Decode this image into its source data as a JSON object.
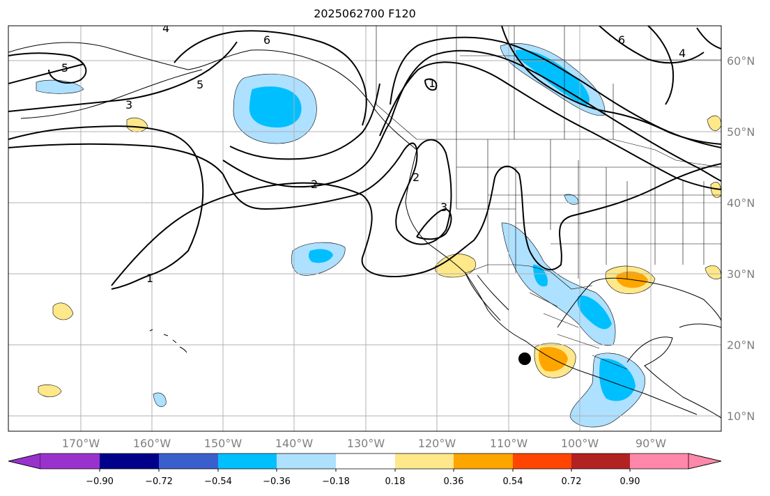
{
  "title": "2025062700 F120",
  "map": {
    "lat_labels": [
      "60°N",
      "50°N",
      "40°N",
      "30°N",
      "20°N",
      "10°N"
    ],
    "lon_labels": [
      "170°W",
      "160°W",
      "150°W",
      "140°W",
      "130°W",
      "120°W",
      "110°W",
      "100°W",
      "90°W"
    ],
    "contour_labels": [
      "4",
      "6",
      "5",
      "5",
      "3",
      "2",
      "1",
      "2",
      "3",
      "1",
      "6",
      "4"
    ],
    "negative_fill_colors": [
      "#aee0ff",
      "#00bfff"
    ],
    "positive_fill_colors": [
      "#ffe88a",
      "#ffa500"
    ],
    "contour_color": "#000000",
    "marker": "storm-center-dot"
  },
  "colorbar": {
    "ticks": [
      "−0.90",
      "−0.72",
      "−0.54",
      "−0.36",
      "−0.18",
      "0.18",
      "0.36",
      "0.54",
      "0.72",
      "0.90"
    ],
    "colors": [
      "#9932cc",
      "#00008b",
      "#3a5fcd",
      "#00bfff",
      "#aee0ff",
      "#ffffff",
      "#ffe88a",
      "#ffa500",
      "#ff4500",
      "#b22222",
      "#ff88aa"
    ]
  }
}
